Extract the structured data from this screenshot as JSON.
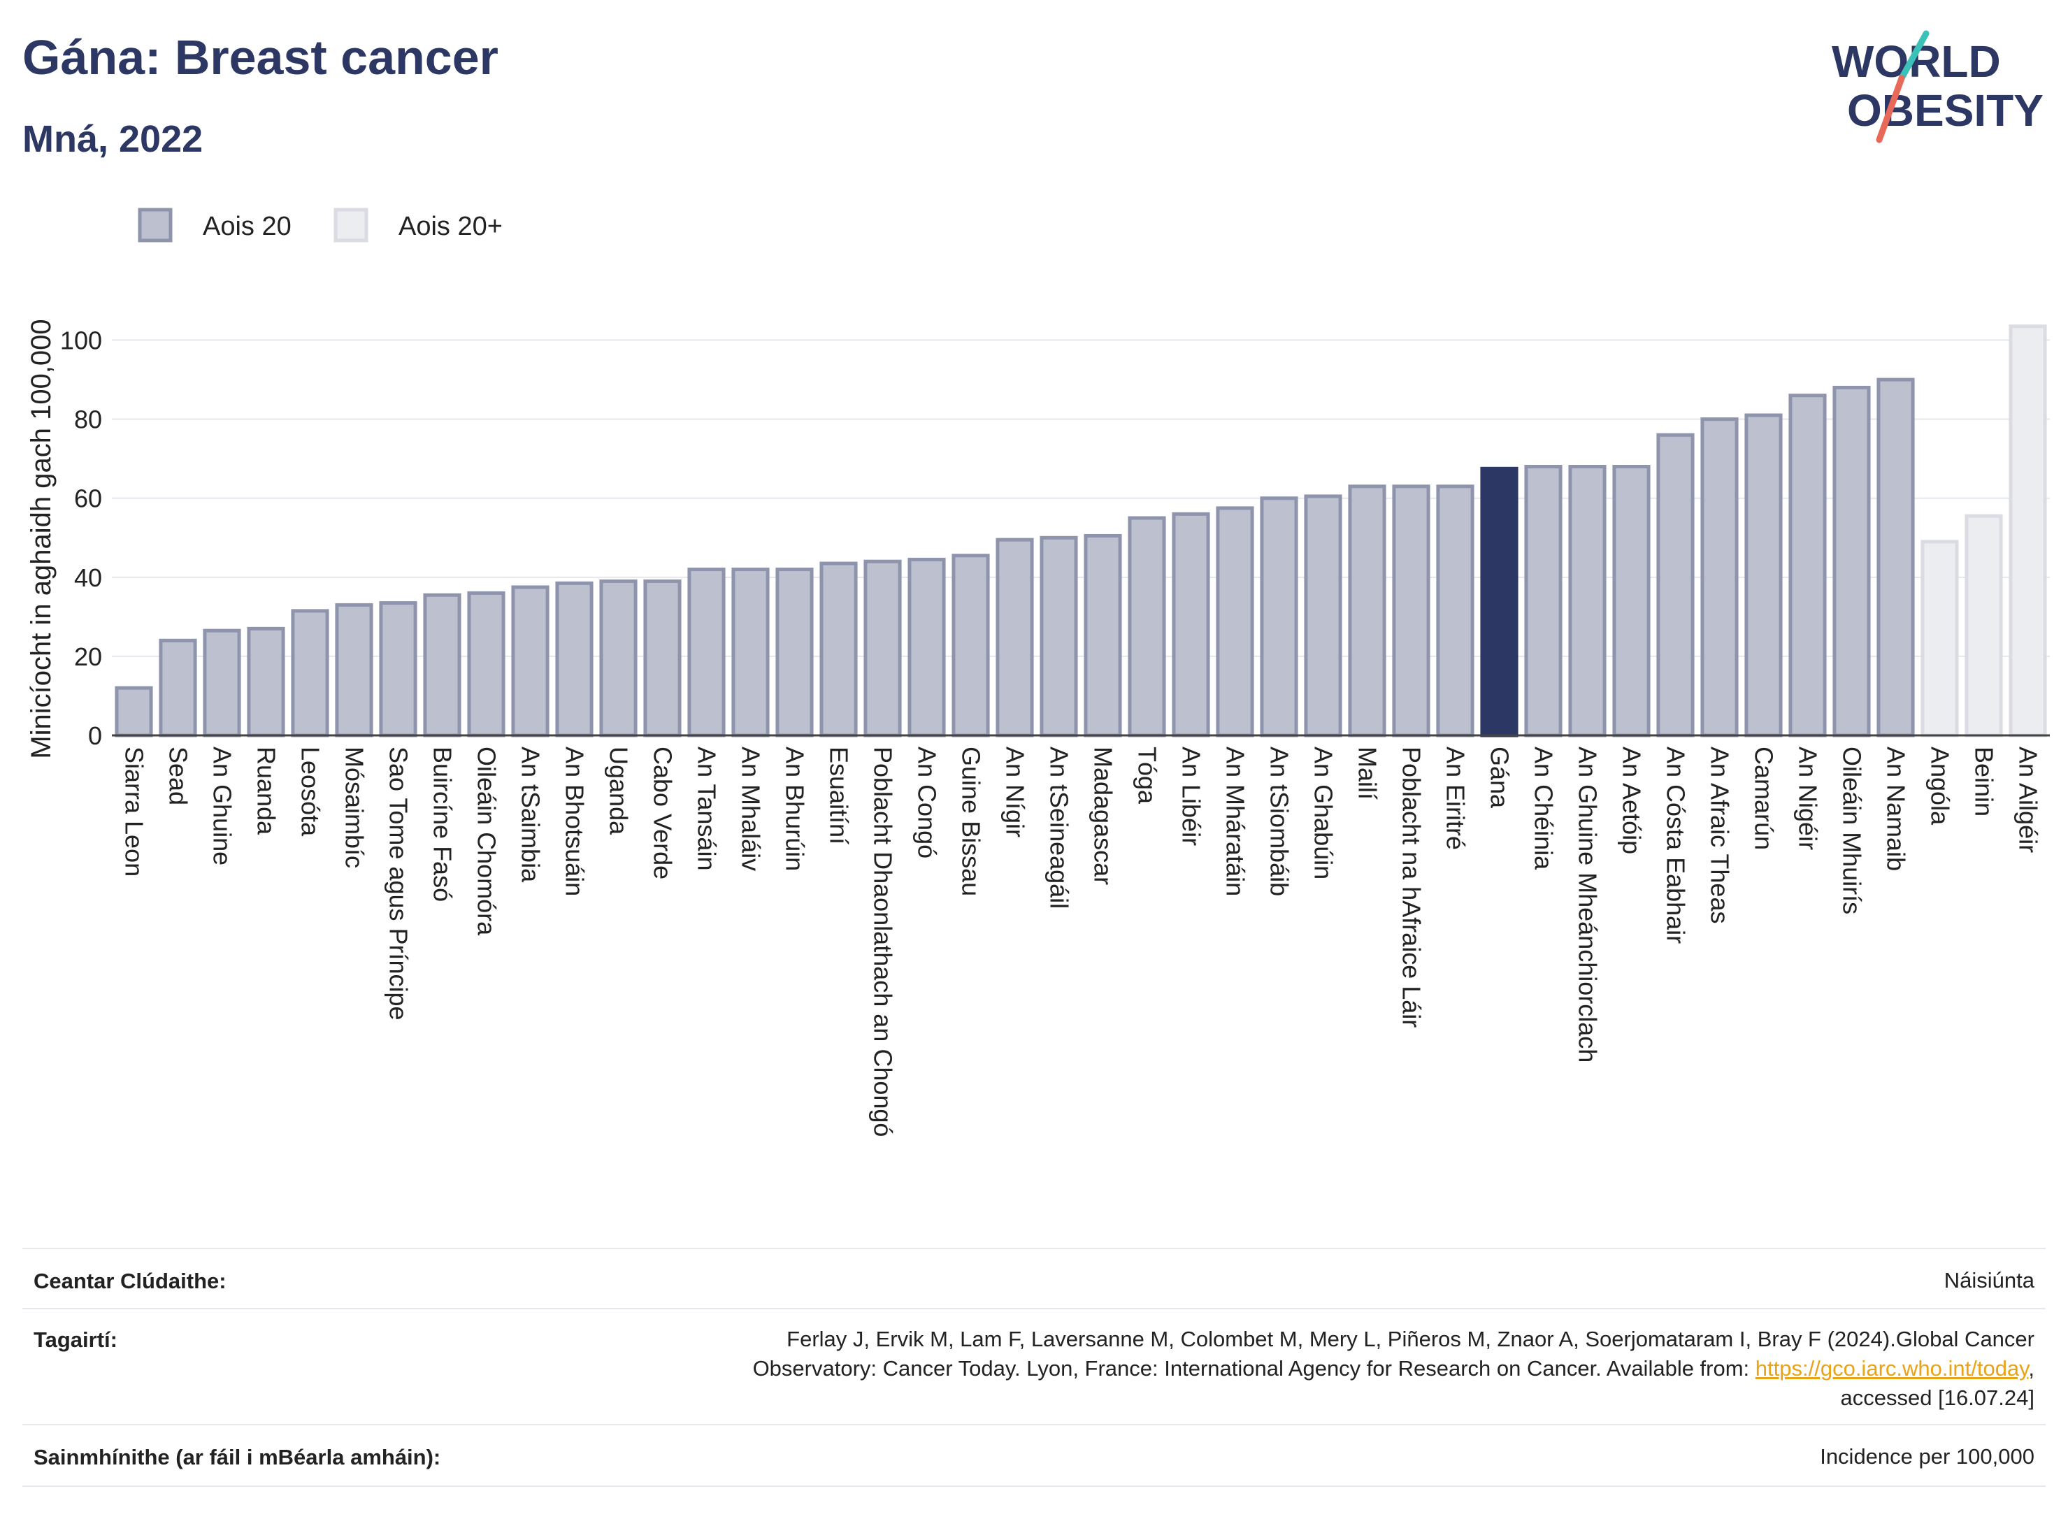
{
  "title": "Gána: Breast cancer",
  "subtitle": "Mná, 2022",
  "logo": {
    "line1": "WORLD",
    "line2": "OBESITY"
  },
  "chart_data": {
    "type": "bar",
    "ylabel": "Minicíocht in aghaidh gach 100,000",
    "xlabel": "",
    "ylim": [
      0,
      110
    ],
    "yticks": [
      0,
      20,
      40,
      60,
      80,
      100
    ],
    "grid": true,
    "legend_position": "top-left",
    "legend": [
      {
        "name": "Aois 20",
        "color": "#bdc0cf",
        "border": "#8f94ad"
      },
      {
        "name": "Aois 20+",
        "color": "#ecedf1",
        "border": "#dadbe3"
      }
    ],
    "highlight_color": "#2d3764",
    "categories": [
      "Siarra Leon",
      "Sead",
      "An Ghuine",
      "Ruanda",
      "Leosóta",
      "Mósaimbíc",
      "Sao Tome agus Príncipe",
      "Buircíne Fasó",
      "Oileáin Chomóra",
      "An tSaimbia",
      "An Bhotsuáin",
      "Uganda",
      "Cabo Verde",
      "An Tansáin",
      "An Mhaláiv",
      "An Bhurúin",
      "Esuaitíní",
      "Poblacht Dhaonlathach an Chongó",
      "An Congó",
      "Guine Bissau",
      "An Nígir",
      "An tSeineagáil",
      "Madagascar",
      "Tóga",
      "An Libéir",
      "An Mháratáin",
      "An tSiombáib",
      "An Ghabúin",
      "Mailí",
      "Poblacht na hAfraice Láir",
      "An Eiritré",
      "Gána",
      "An Chéinia",
      "An Ghuine Mheánchiorclach",
      "An Aetóip",
      "An Cósta Eabhair",
      "An Afraic Theas",
      "Camarún",
      "An Nigéir",
      "Oileáin Mhuirís",
      "An Namaib",
      "Angóla",
      "Beinin",
      "An Ailgéir"
    ],
    "values": [
      12,
      24,
      26.5,
      27,
      31.5,
      33,
      33.5,
      35.5,
      36,
      37.5,
      38.5,
      39,
      39,
      42,
      42,
      42,
      43.5,
      44,
      44.5,
      45.5,
      49.5,
      50,
      50.5,
      55,
      56,
      57.5,
      60,
      60.5,
      63,
      63,
      63,
      67.5,
      68,
      68,
      68,
      76,
      80,
      81,
      86,
      88,
      90,
      49,
      55.5,
      103.5
    ],
    "series_group": [
      "a",
      "a",
      "a",
      "a",
      "a",
      "a",
      "a",
      "a",
      "a",
      "a",
      "a",
      "a",
      "a",
      "a",
      "a",
      "a",
      "a",
      "a",
      "a",
      "a",
      "a",
      "a",
      "a",
      "a",
      "a",
      "a",
      "a",
      "a",
      "a",
      "a",
      "a",
      "h",
      "a",
      "a",
      "a",
      "a",
      "a",
      "a",
      "a",
      "a",
      "a",
      "b",
      "b",
      "b"
    ]
  },
  "footer": {
    "coverage_label": "Ceantar Clúdaithe:",
    "coverage_value": "Náisiúnta",
    "references_label": "Tagairtí:",
    "references_line1": "Ferlay J, Ervik M, Lam F, Laversanne M, Colombet M, Mery L, Piñeros M, Znaor A, Soerjomataram I, Bray F (2024).Global Cancer",
    "references_line2a": "Observatory: Cancer Today. Lyon, France: International Agency for Research on Cancer. Available from: ",
    "references_link": "https://gco.iarc.who.int/today",
    "references_line2b": ",",
    "references_line3": "accessed [16.07.24]",
    "definitions_label": "Sainmhínithe (ar fáil i mBéarla amháin):",
    "definitions_value": "Incidence per 100,000"
  }
}
